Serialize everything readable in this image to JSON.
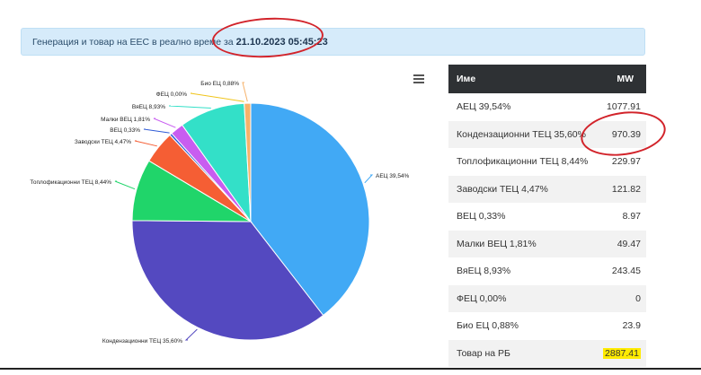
{
  "banner": {
    "label": "Генерация и товар на ЕЕС в реално време за",
    "timestamp": "21.10.2023 05:45:23"
  },
  "menu": {
    "icon": "hamburger-icon"
  },
  "table": {
    "headers": {
      "name": "Име",
      "mw": "MW"
    },
    "rows": [
      {
        "name": "АЕЦ 39,54%",
        "mw": "1077.91"
      },
      {
        "name": "Кондензационни ТЕЦ 35,60%",
        "mw": "970.39"
      },
      {
        "name": "Топлофикационни ТЕЦ 8,44%",
        "mw": "229.97"
      },
      {
        "name": "Заводски ТЕЦ 4,47%",
        "mw": "121.82"
      },
      {
        "name": "ВЕЦ 0,33%",
        "mw": "8.97"
      },
      {
        "name": "Малки ВЕЦ 1,81%",
        "mw": "49.47"
      },
      {
        "name": "ВяЕЦ 8,93%",
        "mw": "243.45"
      },
      {
        "name": "ФЕЦ 0,00%",
        "mw": "0"
      },
      {
        "name": "Био ЕЦ 0,88%",
        "mw": "23.9"
      },
      {
        "name": "Товар на РБ",
        "mw": "2887.41"
      }
    ]
  },
  "chart_data": {
    "type": "pie",
    "slices": [
      {
        "label": "АЕЦ 39,54%",
        "value": 39.54,
        "color": "#41a9f5"
      },
      {
        "label": "Кондензационни ТЕЦ 35,60%",
        "value": 35.6,
        "color": "#5449c0"
      },
      {
        "label": "Топлофикационни ТЕЦ 8,44%",
        "value": 8.44,
        "color": "#20d56a"
      },
      {
        "label": "Заводски ТЕЦ 4,47%",
        "value": 4.47,
        "color": "#f55e34"
      },
      {
        "label": "ВЕЦ 0,33%",
        "value": 0.33,
        "color": "#2f5bd6"
      },
      {
        "label": "Малки ВЕЦ 1,81%",
        "value": 1.81,
        "color": "#c85df0"
      },
      {
        "label": "ВяЕЦ 8,93%",
        "value": 8.93,
        "color": "#33e0c8"
      },
      {
        "label": "ФЕЦ 0,00%",
        "value": 0.0,
        "color": "#f0c419"
      },
      {
        "label": "Био ЕЦ 0,88%",
        "value": 0.88,
        "color": "#f6b26b"
      }
    ]
  }
}
